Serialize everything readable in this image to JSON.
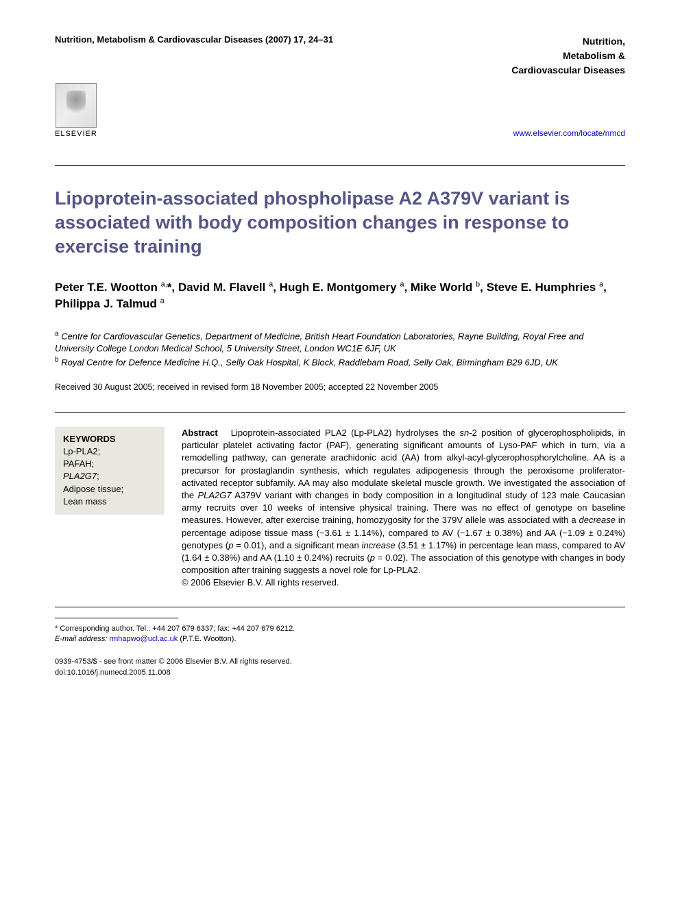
{
  "header": {
    "citation": "Nutrition, Metabolism & Cardiovascular Diseases (2007) 17, 24–31",
    "journal_name_line1": "Nutrition,",
    "journal_name_line2": "Metabolism &",
    "journal_name_line3": "Cardiovascular Diseases",
    "publisher": "ELSEVIER",
    "url": "www.elsevier.com/locate/nmcd"
  },
  "article": {
    "title": "Lipoprotein-associated phospholipase A2 A379V variant is associated with body composition changes in response to exercise training",
    "authors_html": "Peter T.E. Wootton <sup>a,</sup>*, David M. Flavell <sup>a</sup>, Hugh E. Montgomery <sup>a</sup>, Mike World <sup>b</sup>, Steve E. Humphries <sup>a</sup>, Philippa J. Talmud <sup>a</sup>",
    "affiliation_a": "Centre for Cardiovascular Genetics, Department of Medicine, British Heart Foundation Laboratories, Rayne Building, Royal Free and University College London Medical School, 5 University Street, London WC1E 6JF, UK",
    "affiliation_b": "Royal Centre for Defence Medicine H.Q., Selly Oak Hospital, K Block, Raddlebarn Road, Selly Oak, Birmingham B29 6JD, UK",
    "dates": "Received 30 August 2005; received in revised form 18 November 2005; accepted 22 November 2005"
  },
  "keywords": {
    "title": "KEYWORDS",
    "items": [
      "Lp-PLA2;",
      "PAFAH;",
      "PLA2G7;",
      "Adipose tissue;",
      "Lean mass"
    ]
  },
  "abstract": {
    "label": "Abstract",
    "text": "Lipoprotein-associated PLA2 (Lp-PLA2) hydrolyses the sn-2 position of glycerophospholipids, in particular platelet activating factor (PAF), generating significant amounts of Lyso-PAF which in turn, via a remodelling pathway, can generate arachidonic acid (AA) from alkyl-acyl-glycerophosphorylcholine. AA is a precursor for prostaglandin synthesis, which regulates adipogenesis through the peroxisome proliferator-activated receptor subfamily. AA may also modulate skeletal muscle growth. We investigated the association of the PLA2G7 A379V variant with changes in body composition in a longitudinal study of 123 male Caucasian army recruits over 10 weeks of intensive physical training. There was no effect of genotype on baseline measures. However, after exercise training, homozygosity for the 379V allele was associated with a decrease in percentage adipose tissue mass (−3.61 ± 1.14%), compared to AV (−1.67 ± 0.38%) and AA (−1.09 ± 0.24%) genotypes (p = 0.01), and a significant mean increase (3.51 ± 1.17%) in percentage lean mass, compared to AV (1.64 ± 0.38%) and AA (1.10 ± 0.24%) recruits (p = 0.02). The association of this genotype with changes in body composition after training suggests a novel role for Lp-PLA2.",
    "copyright": "© 2006 Elsevier B.V. All rights reserved."
  },
  "corresponding": {
    "text": "* Corresponding author. Tel.: +44 207 679 6337; fax: +44 207 679 6212.",
    "email_label": "E-mail address:",
    "email": "rmhapwo@ucl.ac.uk",
    "email_suffix": "(P.T.E. Wootton)."
  },
  "footer": {
    "line1": "0939-4753/$ - see front matter © 2006 Elsevier B.V. All rights reserved.",
    "line2": "doi:10.1016/j.numecd.2005.11.008"
  }
}
